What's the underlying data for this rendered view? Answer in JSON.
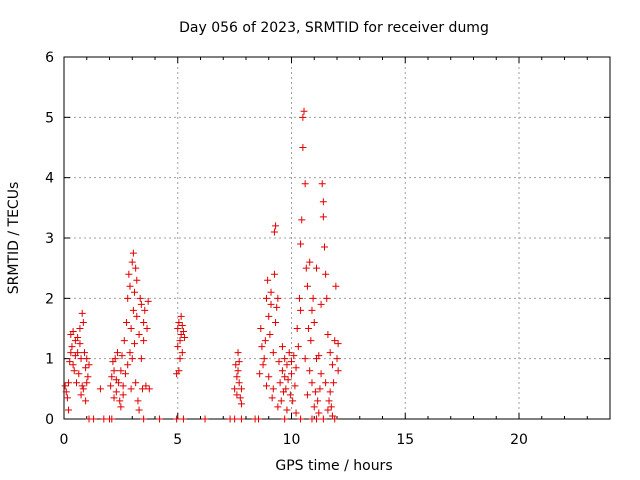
{
  "chart_data": {
    "type": "scatter",
    "title": "Day 056 of 2023, SRMTID for receiver dumg",
    "xlabel": "GPS time / hours",
    "ylabel": "SRMTID / TECUs",
    "xlim": [
      0,
      24
    ],
    "ylim": [
      0,
      6
    ],
    "xticks": [
      0,
      5,
      10,
      15,
      20
    ],
    "yticks": [
      0,
      1,
      2,
      3,
      4,
      5,
      6
    ],
    "xtick_labels": [
      "0",
      "5",
      "10",
      "15",
      "20"
    ],
    "ytick_labels": [
      "0",
      "1",
      "2",
      "3",
      "4",
      "5",
      "6"
    ],
    "grid": true,
    "marker": "+",
    "series": [
      {
        "name": "SRMTID",
        "color": "#e00000",
        "points": [
          [
            0.05,
            0.55
          ],
          [
            0.1,
            0.45
          ],
          [
            0.15,
            0.35
          ],
          [
            0.2,
            0.6
          ],
          [
            0.25,
            0.95
          ],
          [
            0.3,
            1.1
          ],
          [
            0.3,
            1.4
          ],
          [
            0.35,
            1.2
          ],
          [
            0.4,
            0.9
          ],
          [
            0.45,
            0.8
          ],
          [
            0.5,
            1.3
          ],
          [
            0.5,
            1.05
          ],
          [
            0.55,
            0.6
          ],
          [
            0.6,
            1.1
          ],
          [
            0.65,
            0.75
          ],
          [
            0.7,
            1.5
          ],
          [
            0.7,
            1.25
          ],
          [
            0.75,
            1.0
          ],
          [
            0.75,
            0.4
          ],
          [
            0.8,
            1.75
          ],
          [
            0.85,
            1.6
          ],
          [
            0.85,
            0.5
          ],
          [
            0.9,
            1.1
          ],
          [
            0.95,
            0.85
          ],
          [
            0.95,
            0.3
          ],
          [
            1.0,
            0.6
          ],
          [
            1.0,
            1.0
          ],
          [
            1.05,
            0.7
          ],
          [
            1.1,
            0.9
          ],
          [
            0.2,
            0.15
          ],
          [
            0.4,
            1.45
          ],
          [
            0.6,
            1.35
          ],
          [
            0.8,
            0.55
          ],
          [
            1.6,
            0.5
          ],
          [
            2.05,
            0.55
          ],
          [
            2.1,
            0.7
          ],
          [
            2.15,
            0.95
          ],
          [
            2.2,
            0.8
          ],
          [
            2.2,
            0.35
          ],
          [
            2.25,
            1.0
          ],
          [
            2.3,
            0.45
          ],
          [
            2.3,
            0.65
          ],
          [
            2.35,
            1.1
          ],
          [
            2.4,
            0.6
          ],
          [
            2.45,
            0.3
          ],
          [
            2.5,
            0.8
          ],
          [
            2.5,
            0.2
          ],
          [
            2.55,
            1.05
          ],
          [
            2.6,
            0.4
          ],
          [
            2.65,
            1.3
          ],
          [
            2.7,
            0.75
          ],
          [
            2.75,
            1.6
          ],
          [
            2.8,
            2.0
          ],
          [
            2.8,
            0.9
          ],
          [
            2.85,
            2.4
          ],
          [
            2.9,
            1.1
          ],
          [
            2.9,
            2.2
          ],
          [
            2.95,
            1.5
          ],
          [
            3.0,
            2.6
          ],
          [
            3.0,
            1.0
          ],
          [
            3.05,
            2.75
          ],
          [
            3.05,
            1.8
          ],
          [
            3.1,
            2.1
          ],
          [
            3.1,
            1.25
          ],
          [
            3.15,
            0.6
          ],
          [
            3.2,
            2.3
          ],
          [
            3.2,
            1.7
          ],
          [
            3.25,
            0.3
          ],
          [
            3.3,
            0.15
          ],
          [
            3.3,
            1.4
          ],
          [
            3.35,
            2.0
          ],
          [
            3.4,
            1.9
          ],
          [
            3.4,
            1.0
          ],
          [
            3.45,
            0.5
          ],
          [
            3.5,
            1.6
          ],
          [
            3.5,
            1.3
          ],
          [
            3.55,
            1.8
          ],
          [
            3.6,
            0.55
          ],
          [
            3.65,
            1.5
          ],
          [
            3.7,
            1.95
          ],
          [
            3.75,
            0.5
          ],
          [
            2.95,
            0.5
          ],
          [
            3.15,
            2.5
          ],
          [
            2.6,
            0.55
          ],
          [
            4.95,
            0.75
          ],
          [
            5.0,
            1.5
          ],
          [
            5.0,
            1.2
          ],
          [
            5.05,
            1.6
          ],
          [
            5.05,
            0.8
          ],
          [
            5.1,
            1.3
          ],
          [
            5.1,
            1.0
          ],
          [
            5.15,
            1.4
          ],
          [
            5.15,
            1.7
          ],
          [
            5.2,
            1.55
          ],
          [
            5.2,
            1.1
          ],
          [
            5.25,
            1.45
          ],
          [
            5.3,
            1.35
          ],
          [
            7.5,
            0.5
          ],
          [
            7.55,
            0.9
          ],
          [
            7.6,
            0.7
          ],
          [
            7.6,
            0.4
          ],
          [
            7.65,
            1.1
          ],
          [
            7.65,
            0.8
          ],
          [
            7.7,
            0.6
          ],
          [
            7.7,
            0.95
          ],
          [
            7.75,
            0.35
          ],
          [
            7.8,
            0.5
          ],
          [
            7.8,
            0.25
          ],
          [
            8.6,
            0.75
          ],
          [
            8.65,
            1.5
          ],
          [
            8.7,
            1.2
          ],
          [
            8.75,
            0.9
          ],
          [
            8.8,
            1.0
          ],
          [
            8.85,
            1.3
          ],
          [
            8.9,
            0.55
          ],
          [
            8.9,
            2.0
          ],
          [
            8.95,
            2.3
          ],
          [
            9.0,
            1.7
          ],
          [
            9.0,
            0.7
          ],
          [
            9.05,
            1.4
          ],
          [
            9.1,
            1.9
          ],
          [
            9.1,
            2.1
          ],
          [
            9.15,
            0.35
          ],
          [
            9.2,
            0.5
          ],
          [
            9.2,
            1.1
          ],
          [
            9.25,
            2.4
          ],
          [
            9.3,
            1.6
          ],
          [
            9.35,
            1.85
          ],
          [
            9.4,
            2.0
          ],
          [
            9.4,
            0.2
          ],
          [
            9.45,
            0.95
          ],
          [
            9.5,
            0.6
          ],
          [
            9.55,
            0.3
          ],
          [
            9.6,
            0.8
          ],
          [
            9.6,
            1.2
          ],
          [
            9.65,
            0.45
          ],
          [
            9.7,
            0.7
          ],
          [
            9.7,
            1.0
          ],
          [
            9.75,
            0.5
          ],
          [
            9.8,
            0.9
          ],
          [
            9.8,
            0.15
          ],
          [
            9.85,
            0.65
          ],
          [
            9.9,
            1.1
          ],
          [
            9.95,
            0.4
          ],
          [
            10.0,
            0.75
          ],
          [
            10.0,
            0.95
          ],
          [
            10.05,
            0.3
          ],
          [
            10.1,
            1.05
          ],
          [
            10.15,
            0.55
          ],
          [
            10.2,
            0.85
          ],
          [
            10.25,
            1.5
          ],
          [
            10.3,
            1.2
          ],
          [
            10.35,
            2.0
          ],
          [
            10.4,
            1.8
          ],
          [
            10.4,
            2.9
          ],
          [
            10.45,
            3.3
          ],
          [
            10.5,
            4.5
          ],
          [
            10.5,
            5.0
          ],
          [
            10.55,
            5.1
          ],
          [
            10.6,
            3.9
          ],
          [
            10.65,
            2.5
          ],
          [
            10.7,
            2.2
          ],
          [
            10.75,
            1.5
          ],
          [
            10.8,
            0.8
          ],
          [
            10.8,
            2.6
          ],
          [
            10.85,
            1.3
          ],
          [
            10.9,
            0.6
          ],
          [
            10.95,
            2.0
          ],
          [
            11.0,
            1.6
          ],
          [
            11.0,
            0.2
          ],
          [
            11.05,
            0.45
          ],
          [
            11.1,
            1.0
          ],
          [
            11.1,
            2.5
          ],
          [
            11.15,
            0.3
          ],
          [
            11.2,
            0.1
          ],
          [
            11.25,
            0.5
          ],
          [
            11.3,
            1.9
          ],
          [
            11.3,
            0.75
          ],
          [
            11.35,
            3.9
          ],
          [
            11.4,
            3.6
          ],
          [
            11.4,
            3.35
          ],
          [
            11.45,
            2.85
          ],
          [
            11.5,
            2.4
          ],
          [
            11.5,
            0.6
          ],
          [
            11.55,
            2.0
          ],
          [
            11.6,
            1.4
          ],
          [
            11.65,
            0.3
          ],
          [
            11.7,
            0.45
          ],
          [
            11.7,
            1.1
          ],
          [
            11.75,
            0.2
          ],
          [
            11.8,
            0.9
          ],
          [
            11.85,
            0.6
          ],
          [
            11.9,
            1.3
          ],
          [
            11.95,
            2.2
          ],
          [
            12.0,
            1.0
          ],
          [
            12.05,
            1.25
          ],
          [
            12.05,
            0.8
          ],
          [
            10.6,
            1.0
          ],
          [
            10.7,
            0.4
          ],
          [
            10.9,
            1.8
          ],
          [
            11.2,
            1.05
          ],
          [
            11.6,
            0.15
          ],
          [
            9.3,
            3.2
          ],
          [
            9.25,
            3.1
          ],
          [
            10.2,
            0.1
          ],
          [
            11.8,
            0.05
          ],
          [
            1.1,
            0.0
          ],
          [
            1.3,
            0.0
          ],
          [
            1.75,
            0.0
          ],
          [
            2.0,
            0.0
          ],
          [
            2.1,
            0.0
          ],
          [
            3.5,
            0.0
          ],
          [
            4.2,
            0.0
          ],
          [
            4.95,
            0.0
          ],
          [
            5.25,
            0.0
          ],
          [
            6.2,
            0.0
          ],
          [
            7.3,
            0.0
          ],
          [
            7.5,
            0.0
          ],
          [
            7.8,
            0.0
          ],
          [
            8.4,
            0.0
          ],
          [
            8.55,
            0.0
          ],
          [
            9.7,
            0.0
          ],
          [
            10.4,
            0.0
          ],
          [
            10.9,
            0.0
          ],
          [
            11.1,
            0.0
          ],
          [
            11.4,
            0.0
          ],
          [
            11.9,
            0.0
          ]
        ]
      }
    ]
  }
}
